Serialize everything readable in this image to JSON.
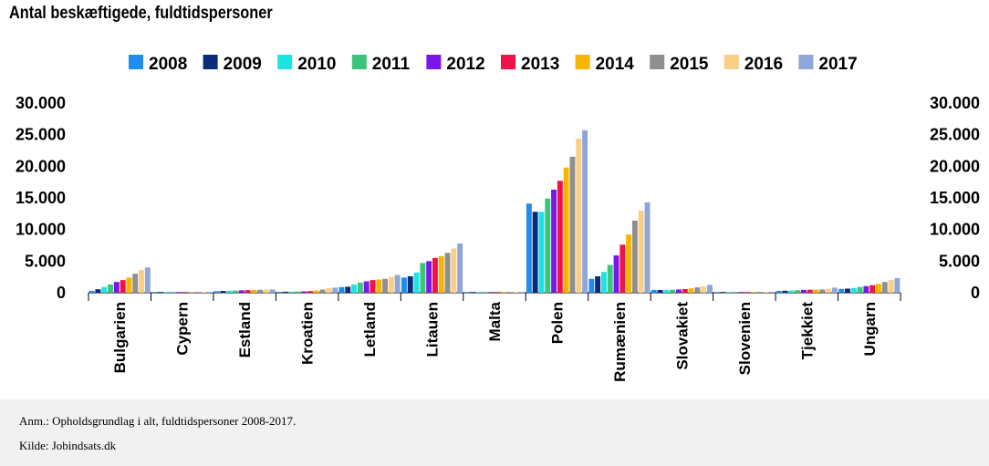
{
  "chart_data": {
    "type": "bar",
    "title": "Antal beskæftigede, fuldtidspersoner",
    "categories": [
      "Bulgarien",
      "Cypern",
      "Estland",
      "Kroatien",
      "Letland",
      "Litauen",
      "Malta",
      "Polen",
      "Rumænien",
      "Slovakiet",
      "Slovenien",
      "Tjekkiet",
      "Ungarn"
    ],
    "series": [
      {
        "name": "2008",
        "color": "#1f8ded",
        "values": [
          300,
          20,
          250,
          150,
          900,
          2400,
          10,
          14100,
          2200,
          450,
          60,
          300,
          600
        ]
      },
      {
        "name": "2009",
        "color": "#0a2a7a",
        "values": [
          550,
          20,
          280,
          160,
          950,
          2600,
          10,
          12800,
          2600,
          430,
          70,
          320,
          650
        ]
      },
      {
        "name": "2010",
        "color": "#1de3e3",
        "values": [
          900,
          25,
          320,
          170,
          1300,
          3200,
          10,
          12800,
          3300,
          450,
          80,
          350,
          750
        ]
      },
      {
        "name": "2011",
        "color": "#3cc47c",
        "values": [
          1300,
          30,
          350,
          190,
          1600,
          4700,
          15,
          14900,
          4400,
          480,
          90,
          400,
          900
        ]
      },
      {
        "name": "2012",
        "color": "#7a16e8",
        "values": [
          1700,
          30,
          380,
          220,
          1800,
          5000,
          15,
          16300,
          5900,
          520,
          90,
          450,
          1050
        ]
      },
      {
        "name": "2013",
        "color": "#f0134a",
        "values": [
          2000,
          35,
          420,
          260,
          2000,
          5500,
          15,
          17700,
          7600,
          580,
          100,
          480,
          1200
        ]
      },
      {
        "name": "2014",
        "color": "#f7b400",
        "values": [
          2400,
          40,
          450,
          350,
          2100,
          5800,
          20,
          19800,
          9200,
          700,
          110,
          500,
          1400
        ]
      },
      {
        "name": "2015",
        "color": "#8f8f8f",
        "values": [
          3000,
          40,
          470,
          500,
          2200,
          6300,
          20,
          21500,
          11400,
          850,
          120,
          520,
          1700
        ]
      },
      {
        "name": "2016",
        "color": "#f9cf86",
        "values": [
          3600,
          45,
          500,
          750,
          2500,
          7000,
          20,
          24400,
          13000,
          1000,
          130,
          650,
          2000
        ]
      },
      {
        "name": "2017",
        "color": "#8ea6d8",
        "values": [
          4000,
          50,
          520,
          800,
          2800,
          7800,
          25,
          25700,
          14300,
          1250,
          140,
          800,
          2300
        ]
      }
    ],
    "ylim": [
      0,
      30000
    ],
    "yticks": [
      "30.000",
      "25.000",
      "20.000",
      "15.000",
      "10.000",
      "5.000",
      "0"
    ],
    "legend_position": "top",
    "grid": false
  },
  "footer": {
    "note": "Anm.: Opholdsgrundlag i alt, fuldtidspersoner 2008-2017.",
    "source": "Kilde: Jobindsats.dk"
  }
}
